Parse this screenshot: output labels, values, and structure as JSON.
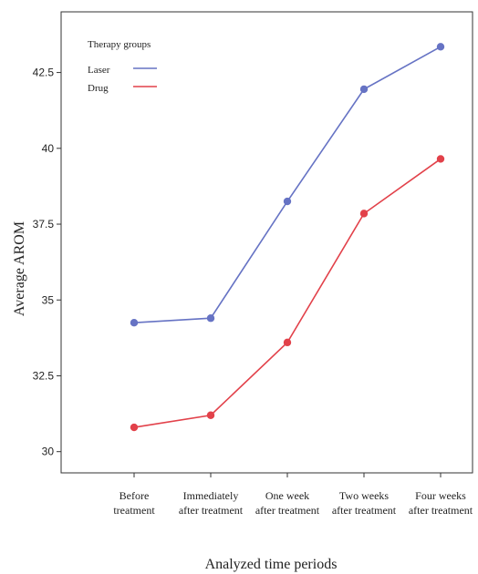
{
  "chart_data": {
    "type": "line",
    "categories": [
      [
        "Before",
        "treatment"
      ],
      [
        "Immediately",
        "after treatment"
      ],
      [
        "One week",
        "after treatment"
      ],
      [
        "Two weeks",
        "after treatment"
      ],
      [
        "Four weeks",
        "after treatment"
      ]
    ],
    "series": [
      {
        "name": "Laser",
        "color": "#6673c4",
        "values": [
          34.25,
          34.4,
          38.25,
          41.95,
          43.35
        ]
      },
      {
        "name": "Drug",
        "color": "#e2414a",
        "values": [
          30.8,
          31.2,
          33.6,
          37.85,
          39.65
        ]
      }
    ],
    "xlabel": "Analyzed time periods",
    "ylabel": "Average AROM",
    "ylim": [
      29.3,
      44.5
    ],
    "yticks": [
      30,
      32.5,
      35,
      37.5,
      40,
      42.5
    ],
    "ytick_labels": [
      "30",
      "32.5",
      "35",
      "37.5",
      "40",
      "42.5"
    ],
    "legend": {
      "title": "Therapy groups",
      "placement": "top-left"
    },
    "grid": false
  }
}
